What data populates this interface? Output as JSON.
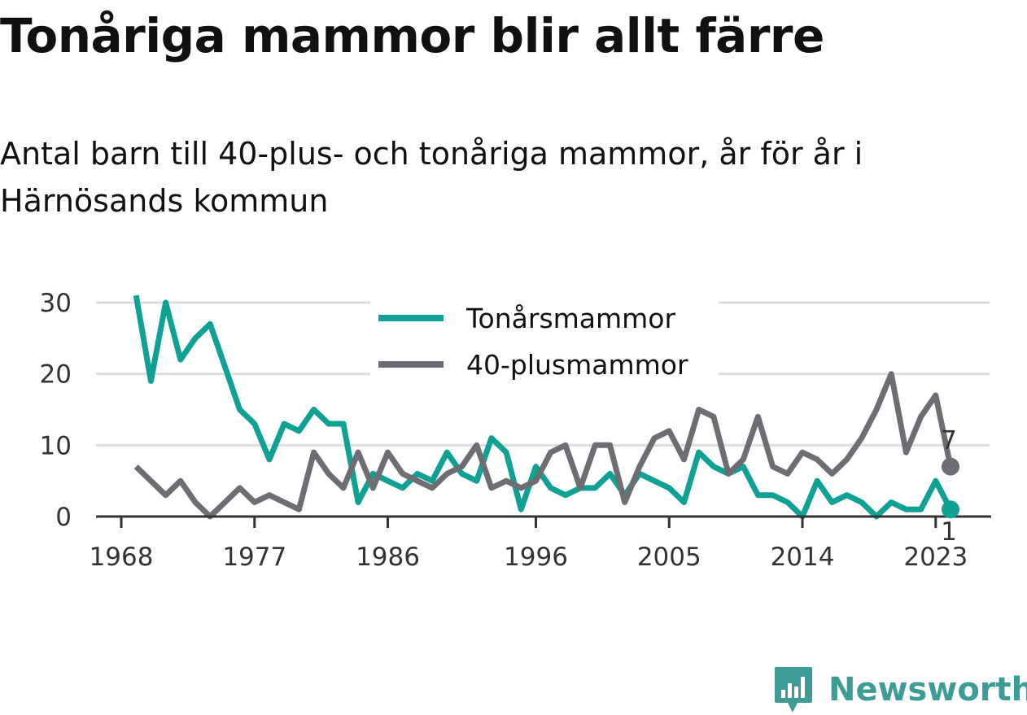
{
  "title": "Tonåriga mammor blir allt färre",
  "subtitle": "Antal barn till 40-plus- och tonåriga mammor, år för år i Härnösands kommun",
  "brand": {
    "name": "Newsworthy",
    "color": "#3d9c96"
  },
  "chart_data": {
    "type": "line",
    "x_ticks": [
      "1968",
      "1977",
      "1986",
      "1996",
      "2005",
      "2014",
      "2023"
    ],
    "y_ticks": [
      "0",
      "10",
      "20",
      "30"
    ],
    "ylim": [
      0,
      30
    ],
    "xlim": [
      1968,
      2024
    ],
    "grid": true,
    "legend_position": "top-center",
    "x": [
      1969,
      1970,
      1971,
      1972,
      1973,
      1974,
      1975,
      1976,
      1977,
      1978,
      1979,
      1980,
      1981,
      1982,
      1983,
      1984,
      1985,
      1986,
      1987,
      1988,
      1989,
      1990,
      1991,
      1992,
      1993,
      1994,
      1995,
      1996,
      1997,
      1998,
      1999,
      2000,
      2001,
      2002,
      2003,
      2004,
      2005,
      2006,
      2007,
      2008,
      2009,
      2010,
      2011,
      2012,
      2013,
      2014,
      2015,
      2016,
      2017,
      2018,
      2019,
      2020,
      2021,
      2022,
      2023,
      2024
    ],
    "series": [
      {
        "name": "Tonårsmammor",
        "color": "#0ea194",
        "values": [
          31,
          19,
          30,
          22,
          25,
          27,
          21,
          15,
          13,
          8,
          13,
          12,
          15,
          13,
          13,
          2,
          6,
          5,
          4,
          6,
          5,
          9,
          6,
          5,
          11,
          9,
          1,
          7,
          4,
          3,
          4,
          4,
          6,
          3,
          6,
          5,
          4,
          2,
          9,
          7,
          6,
          7,
          3,
          3,
          2,
          0,
          5,
          2,
          3,
          2,
          0,
          2,
          1,
          1,
          5,
          1
        ],
        "end_label": "1"
      },
      {
        "name": "40-plusmammor",
        "color": "#6e6d73",
        "values": [
          7,
          5,
          3,
          5,
          2,
          0,
          2,
          4,
          2,
          3,
          2,
          1,
          9,
          6,
          4,
          9,
          4,
          9,
          6,
          5,
          4,
          6,
          7,
          10,
          4,
          5,
          4,
          5,
          9,
          10,
          4,
          10,
          10,
          2,
          7,
          11,
          12,
          8,
          15,
          14,
          6,
          8,
          14,
          7,
          6,
          9,
          8,
          6,
          8,
          11,
          15,
          20,
          9,
          14,
          17,
          7
        ],
        "end_label": "7"
      }
    ]
  }
}
